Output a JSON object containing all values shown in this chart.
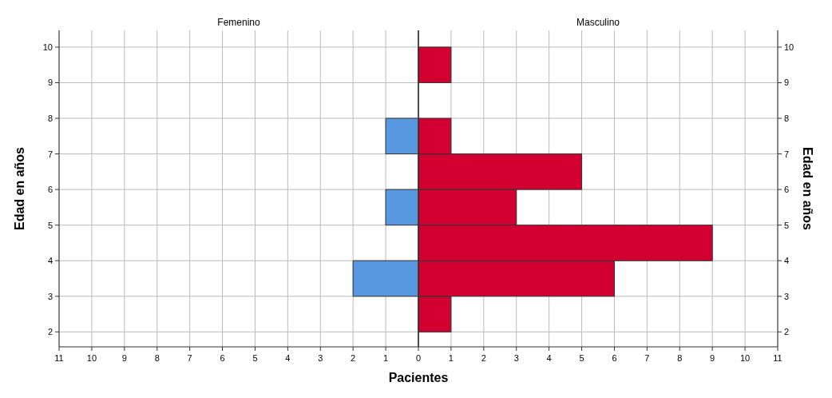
{
  "chart_data": [
    {
      "type": "histogram",
      "orientation": "horizontal",
      "title": "Femenino",
      "ylabel": "Edad en años",
      "bins": [
        2,
        3,
        4,
        5,
        6,
        7,
        8,
        9,
        10
      ],
      "values": [
        0,
        2,
        0,
        1,
        0,
        1,
        0,
        0
      ],
      "color": "#5898e0",
      "xlim": [
        11,
        0
      ],
      "xticks": [
        11,
        10,
        9,
        8,
        7,
        6,
        5,
        4,
        3,
        2,
        1
      ],
      "ylim": [
        1.58,
        10.47
      ],
      "yticks": [
        2,
        3,
        4,
        5,
        6,
        7,
        8,
        9,
        10
      ],
      "grid": true
    },
    {
      "type": "histogram",
      "orientation": "horizontal",
      "title": "Masculino",
      "xlabel": "Pacientes",
      "ylabel": "Edad en años",
      "bins": [
        2,
        3,
        4,
        5,
        6,
        7,
        8,
        9,
        10
      ],
      "values": [
        1,
        6,
        9,
        3,
        5,
        1,
        0,
        1
      ],
      "color": "#d20030",
      "xlim": [
        0,
        11
      ],
      "xticks": [
        0,
        1,
        2,
        3,
        4,
        5,
        6,
        7,
        8,
        9,
        10,
        11
      ],
      "ylim": [
        1.58,
        10.47
      ],
      "yticks": [
        2,
        3,
        4,
        5,
        6,
        7,
        8,
        9,
        10
      ],
      "grid": true
    }
  ]
}
